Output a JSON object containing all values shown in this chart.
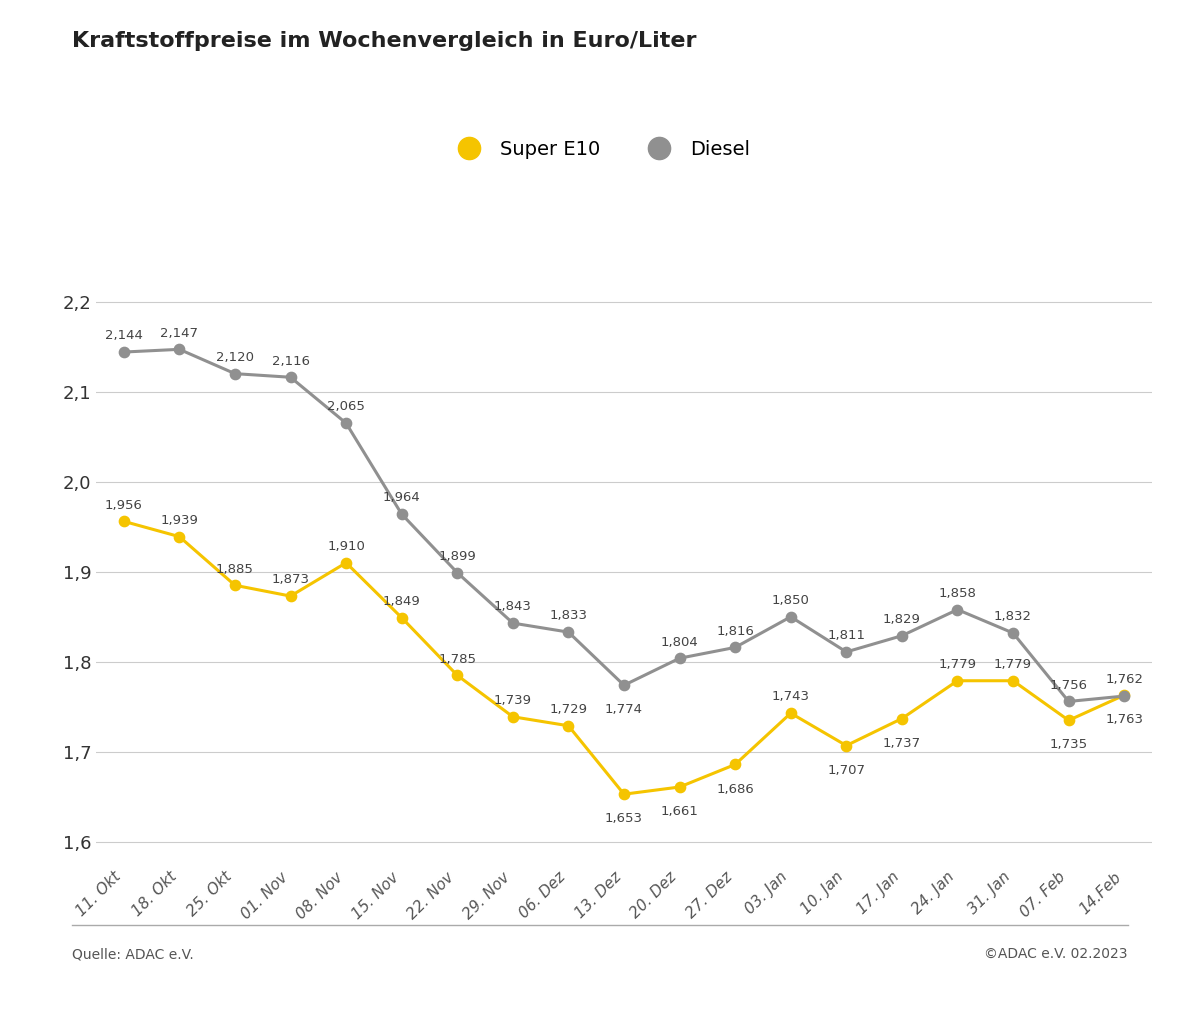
{
  "title": "Kraftstoffpreise im Wochenvergleich in Euro/Liter",
  "categories": [
    "11. Okt",
    "18. Okt",
    "25. Okt",
    "01. Nov",
    "08. Nov",
    "15. Nov",
    "22. Nov",
    "29. Nov",
    "06. Dez",
    "13. Dez",
    "20. Dez",
    "27. Dez",
    "03. Jan",
    "10. Jan",
    "17. Jan",
    "24. Jan",
    "31. Jan",
    "07. Feb",
    "14.Feb"
  ],
  "super_e10": [
    1.956,
    1.939,
    1.885,
    1.873,
    1.91,
    1.849,
    1.785,
    1.739,
    1.729,
    1.653,
    1.661,
    1.686,
    1.743,
    1.707,
    1.737,
    1.779,
    1.779,
    1.735,
    1.763
  ],
  "diesel": [
    2.144,
    2.147,
    2.12,
    2.116,
    2.065,
    1.964,
    1.899,
    1.843,
    1.833,
    1.774,
    1.804,
    1.816,
    1.85,
    1.811,
    1.829,
    1.858,
    1.832,
    1.756,
    1.762
  ],
  "super_e10_labels": [
    "1,956",
    "1,939",
    "1,885",
    "1,873",
    "1,910",
    "1,849",
    "1,785",
    "1,739",
    "1,729",
    "1,653",
    "1,661",
    "1,686",
    "1,743",
    "1,707",
    "1,737",
    "1,779",
    "1,779",
    "1,735",
    "1,763"
  ],
  "diesel_labels": [
    "2,144",
    "2,147",
    "2,120",
    "2,116",
    "2,065",
    "1,964",
    "1,899",
    "1,843",
    "1,833",
    "1,774",
    "1,804",
    "1,816",
    "1,850",
    "1,811",
    "1,829",
    "1,858",
    "1,832",
    "1,756",
    "1,762"
  ],
  "super_e10_color": "#F5C400",
  "diesel_color": "#909090",
  "ylim_min": 1.575,
  "ylim_max": 2.23,
  "yticks": [
    1.6,
    1.7,
    1.8,
    1.9,
    2.0,
    2.1,
    2.2
  ],
  "ytick_labels": [
    "1,6",
    "1,7",
    "1,8",
    "1,9",
    "2,0",
    "2,1",
    "2,2"
  ],
  "source_left": "Quelle: ADAC e.V.",
  "source_right": "©ADAC e.V. 02.2023",
  "background_color": "#ffffff",
  "grid_color": "#cccccc",
  "label_fontsize": 9.5,
  "title_fontsize": 16
}
